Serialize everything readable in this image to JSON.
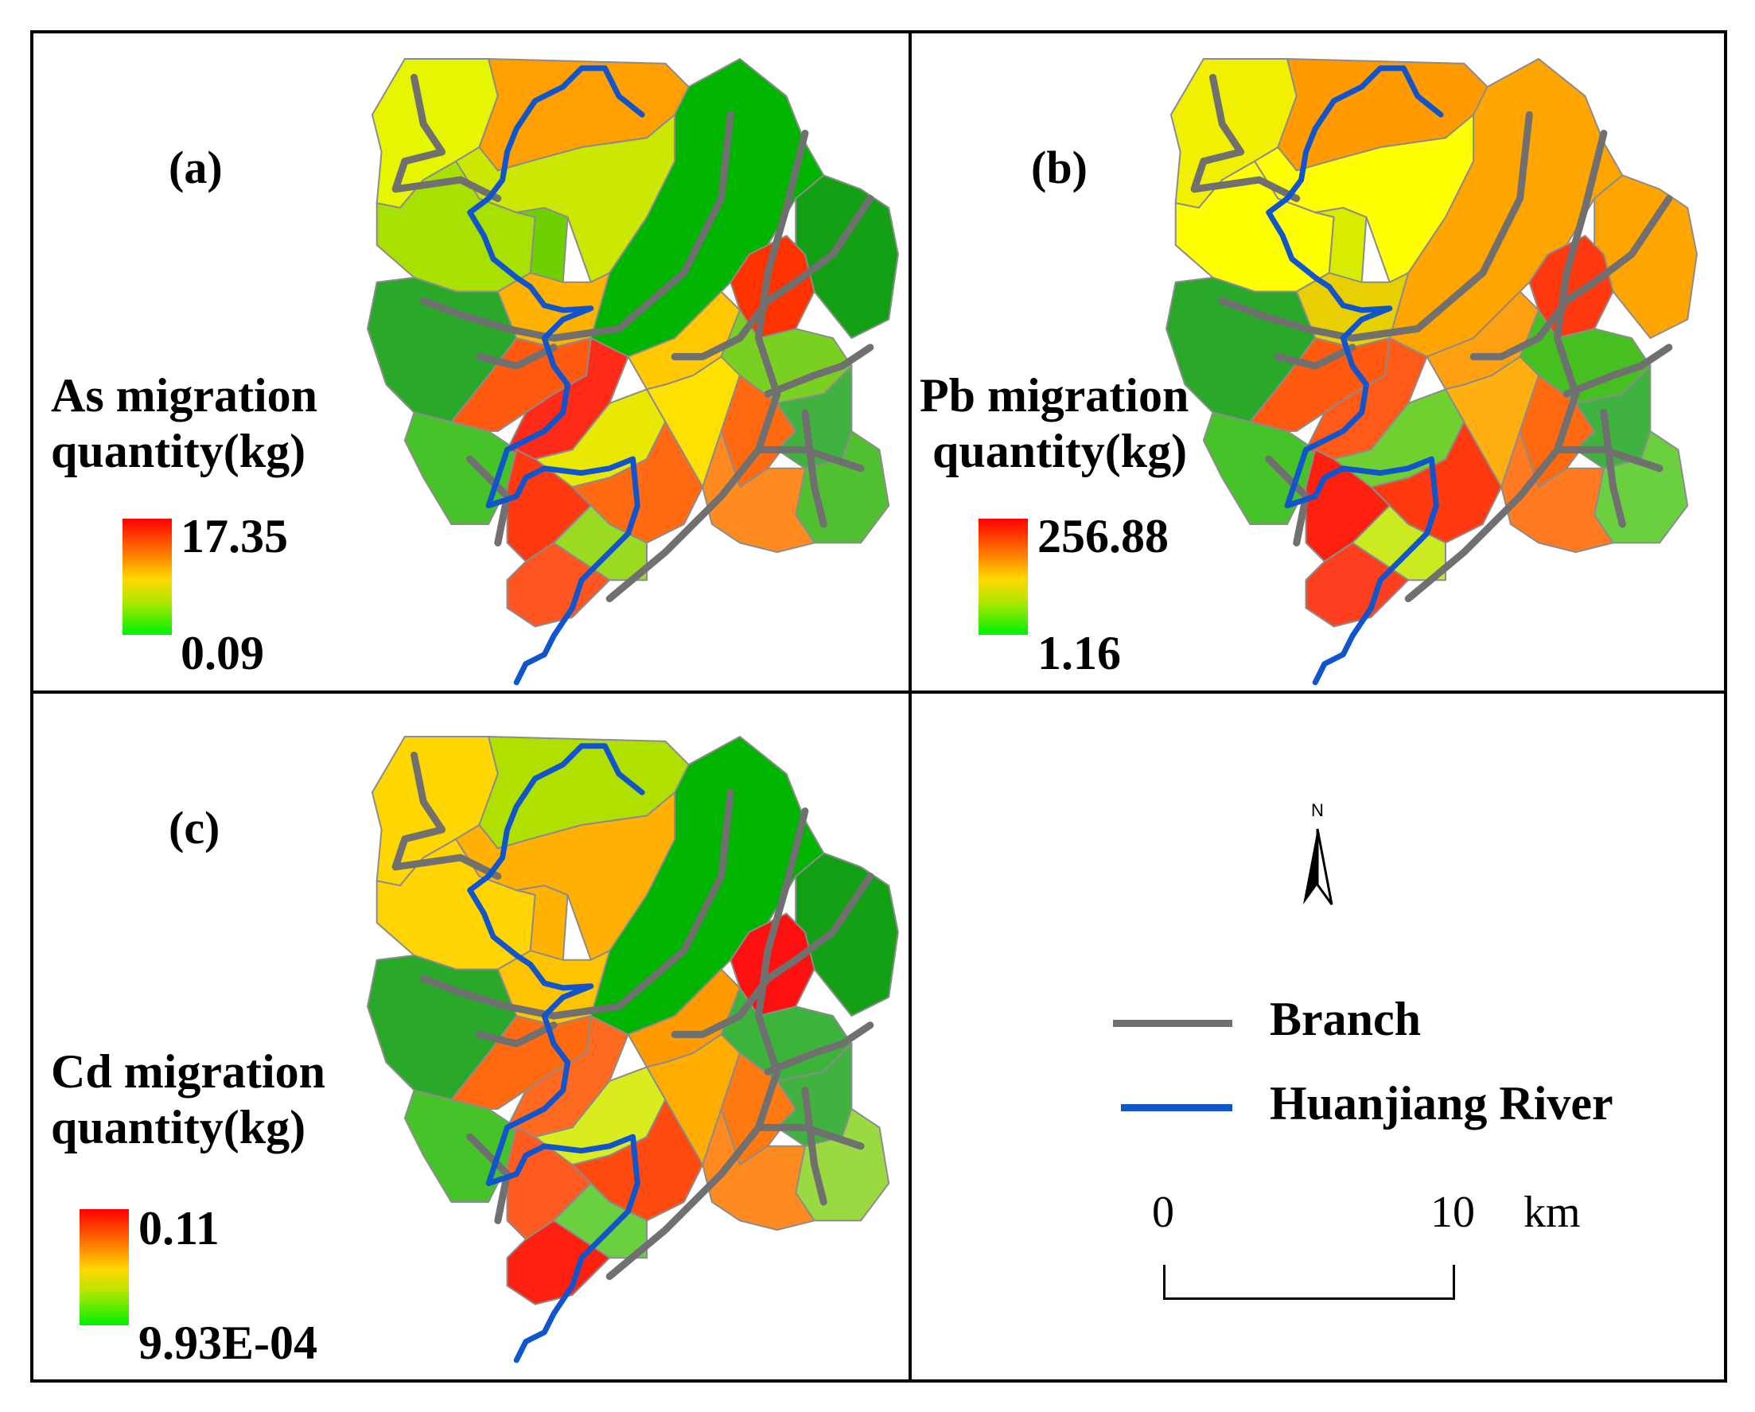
{
  "panels": [
    {
      "id": "a",
      "tag": "(a)",
      "title_line1": "As migration",
      "title_line2": "quantity(kg)",
      "max_label": "17.35",
      "min_label": "0.09",
      "subbasin_colors": [
        "#e6f500",
        "#ff9f00",
        "#00b400",
        "#14a014",
        "#a8e000",
        "#6fd000",
        "#cde800",
        "#ffb300",
        "#ff3200",
        "#2aa82a",
        "#46c328",
        "#ff5a10",
        "#ff2a18",
        "#e8e800",
        "#ffc800",
        "#ffe100",
        "#7ad020",
        "#ff6a10",
        "#3fb23f",
        "#ff6a12",
        "#ff3a10",
        "#9ada20",
        "#ff5520",
        "#50c030",
        "#ff8a20"
      ]
    },
    {
      "id": "b",
      "tag": "(b)",
      "title_line1": "Pb migration",
      "title_line2": "quantity(kg)",
      "max_label": "256.88",
      "min_label": "1.16",
      "subbasin_colors": [
        "#f0f000",
        "#ff9a00",
        "#ffa500",
        "#ffa500",
        "#ffff00",
        "#d8ec00",
        "#ffff00",
        "#e8d000",
        "#ff3a10",
        "#2aa82a",
        "#46c328",
        "#ff5a10",
        "#ff5a18",
        "#6fd030",
        "#ffa010",
        "#ffb010",
        "#45c020",
        "#ff6a10",
        "#3fb23f",
        "#ff3a10",
        "#ff2010",
        "#ccea20",
        "#ff4020",
        "#6ad040",
        "#ff7a20"
      ]
    },
    {
      "id": "c",
      "tag": "(c)",
      "title_line1": "Cd migration",
      "title_line2": "quantity(kg)",
      "max_label": "0.11",
      "min_label": "9.93E-04",
      "subbasin_colors": [
        "#ffd700",
        "#b0e000",
        "#00b400",
        "#14a014",
        "#ffd400",
        "#ffb200",
        "#ffb000",
        "#ffc400",
        "#ff1010",
        "#2aa82a",
        "#46c328",
        "#ff6a10",
        "#ff6a20",
        "#d8ec20",
        "#ff9a00",
        "#ffae00",
        "#3cb43c",
        "#ff7a10",
        "#3fb23f",
        "#ff4a10",
        "#ff5a20",
        "#6ad040",
        "#ff2010",
        "#9ada40",
        "#ff8a20"
      ]
    }
  ],
  "legend": {
    "north_label": "N",
    "branch_label": "Branch",
    "river_label": "Huanjiang River",
    "branch_color": "#707070",
    "river_color": "#1155cc",
    "scale_start": "0",
    "scale_end": "10",
    "scale_unit": "km"
  }
}
